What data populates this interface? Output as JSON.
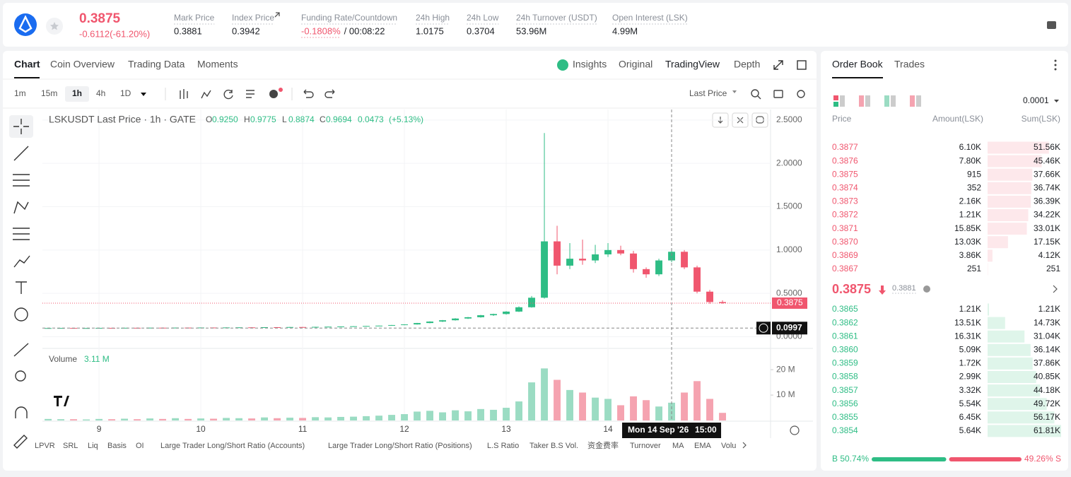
{
  "header": {
    "price": "0.3875",
    "change": "-0.6112(-61.20%)",
    "stats": [
      {
        "label": "Mark Price",
        "value": "0.3881"
      },
      {
        "label": "Index Price",
        "value": "0.3942"
      },
      {
        "label": "Funding Rate/Countdown",
        "value": "-0.1808%",
        "countdown": "/ 00:08:22"
      },
      {
        "label": "24h High",
        "value": "1.0175"
      },
      {
        "label": "24h Low",
        "value": "0.3704"
      },
      {
        "label": "24h Turnover (USDT)",
        "value": "53.96M"
      },
      {
        "label": "Open Interest (LSK)",
        "value": "4.99M"
      }
    ]
  },
  "tabs": [
    "Chart",
    "Coin Overview",
    "Trading Data",
    "Moments"
  ],
  "views": [
    "Insights",
    "Original",
    "TradingView",
    "Depth"
  ],
  "intervals": [
    "1m",
    "15m",
    "1h",
    "4h",
    "1D"
  ],
  "price_source": "Last Price",
  "chart_data": {
    "type": "candlestick",
    "title": "LSKUSDT Last Price · 1h · GATE",
    "legend": [
      {
        "key": "O",
        "value": "0.9250"
      },
      {
        "key": "H",
        "value": "0.9775"
      },
      {
        "key": "L",
        "value": "0.8874"
      },
      {
        "key": "C",
        "value": "0.9694"
      }
    ],
    "change": "0.0473",
    "change_pct": "(+5.13%)",
    "up_color": "#2ebd85",
    "down_color": "#f0566e",
    "x": [
      8.5,
      8.625,
      8.75,
      8.875,
      9.0,
      9.125,
      9.25,
      9.375,
      9.5,
      9.625,
      9.75,
      9.875,
      10.0,
      10.125,
      10.25,
      10.375,
      10.5,
      10.625,
      10.75,
      10.875,
      11.0,
      11.125,
      11.25,
      11.375,
      11.5,
      11.625,
      11.75,
      11.875,
      12.0,
      12.125,
      12.25,
      12.375,
      12.5,
      12.625,
      12.75,
      12.875,
      13.0,
      13.125,
      13.25,
      13.375,
      13.5,
      13.625,
      13.75,
      13.875,
      14.0,
      14.125,
      14.25,
      14.375,
      14.5,
      14.625,
      14.75,
      14.875,
      15.0,
      15.125
    ],
    "open": [
      0.099,
      0.1,
      0.101,
      0.099,
      0.1,
      0.102,
      0.101,
      0.103,
      0.102,
      0.104,
      0.103,
      0.105,
      0.104,
      0.106,
      0.105,
      0.107,
      0.108,
      0.107,
      0.11,
      0.109,
      0.112,
      0.111,
      0.114,
      0.116,
      0.118,
      0.121,
      0.124,
      0.128,
      0.135,
      0.142,
      0.158,
      0.175,
      0.19,
      0.21,
      0.225,
      0.248,
      0.262,
      0.29,
      0.34,
      0.45,
      1.1,
      0.82,
      0.9,
      0.88,
      0.95,
      1.0,
      0.96,
      0.78,
      0.72,
      0.88,
      0.98,
      0.8,
      0.52,
      0.4
    ],
    "high": [
      0.102,
      0.102,
      0.102,
      0.101,
      0.103,
      0.103,
      0.104,
      0.104,
      0.105,
      0.105,
      0.106,
      0.106,
      0.107,
      0.107,
      0.108,
      0.109,
      0.109,
      0.111,
      0.111,
      0.113,
      0.113,
      0.115,
      0.117,
      0.119,
      0.122,
      0.125,
      0.129,
      0.136,
      0.144,
      0.16,
      0.178,
      0.193,
      0.214,
      0.228,
      0.252,
      0.266,
      0.295,
      0.35,
      0.47,
      2.35,
      1.28,
      1.08,
      1.12,
      1.06,
      1.08,
      1.05,
      0.99,
      0.8,
      0.9,
      1.02,
      1.0,
      0.82,
      0.54,
      0.42
    ],
    "low": [
      0.098,
      0.099,
      0.098,
      0.098,
      0.099,
      0.1,
      0.1,
      0.101,
      0.101,
      0.102,
      0.102,
      0.103,
      0.103,
      0.104,
      0.104,
      0.106,
      0.106,
      0.106,
      0.108,
      0.108,
      0.11,
      0.11,
      0.113,
      0.115,
      0.117,
      0.12,
      0.123,
      0.127,
      0.133,
      0.14,
      0.155,
      0.17,
      0.186,
      0.205,
      0.22,
      0.24,
      0.255,
      0.285,
      0.335,
      0.44,
      0.72,
      0.78,
      0.83,
      0.85,
      0.92,
      0.94,
      0.74,
      0.68,
      0.7,
      0.86,
      0.78,
      0.5,
      0.38,
      0.38
    ],
    "close": [
      0.1,
      0.101,
      0.099,
      0.1,
      0.102,
      0.101,
      0.103,
      0.102,
      0.104,
      0.103,
      0.105,
      0.104,
      0.106,
      0.105,
      0.107,
      0.108,
      0.107,
      0.11,
      0.109,
      0.112,
      0.111,
      0.114,
      0.116,
      0.118,
      0.121,
      0.124,
      0.128,
      0.135,
      0.142,
      0.158,
      0.175,
      0.19,
      0.21,
      0.225,
      0.248,
      0.262,
      0.29,
      0.34,
      0.45,
      1.1,
      0.82,
      0.9,
      0.88,
      0.95,
      1.0,
      0.96,
      0.78,
      0.72,
      0.88,
      0.98,
      0.8,
      0.52,
      0.4,
      0.3875
    ],
    "xlim": [
      8.444,
      15.597
    ],
    "xticks": [
      9,
      10,
      11,
      12,
      13,
      14
    ],
    "ylim": [
      -0.11,
      2.58
    ],
    "yticks": [
      {
        "value": 0,
        "label": "0.0000"
      },
      {
        "value": 0.5,
        "label": "0.5000"
      },
      {
        "value": 1,
        "label": "1.0000"
      },
      {
        "value": 1.5,
        "label": "1.5000"
      },
      {
        "value": 2,
        "label": "2.0000"
      },
      {
        "value": 2.5,
        "label": "2.5000"
      }
    ],
    "grid": true,
    "last_price": {
      "value": 0.3875,
      "label": "0.3875"
    },
    "crosshair": {
      "x": 14.625,
      "price": {
        "value": 0.0997,
        "label": "0.0997"
      },
      "date_label": "Mon 14 Sep '26",
      "time_label": "15:00"
    },
    "volume": {
      "title": "Volume",
      "current": "3.11 M",
      "up_color": "#9bdcc3",
      "down_color": "#f5a3b0",
      "values": [
        0.6,
        0.5,
        0.5,
        0.4,
        0.6,
        0.5,
        0.7,
        0.5,
        0.8,
        0.6,
        0.9,
        0.6,
        0.8,
        0.7,
        1.0,
        0.9,
        0.8,
        1.2,
        0.9,
        1.1,
        1.0,
        1.3,
        1.2,
        1.4,
        1.5,
        1.7,
        1.9,
        2.2,
        2.5,
        3.5,
        3.8,
        3.2,
        4.0,
        3.6,
        4.5,
        4.2,
        5.0,
        7.5,
        15.0,
        20.5,
        16.0,
        12.0,
        11.0,
        9.0,
        8.5,
        6.0,
        9.5,
        8.0,
        5.5,
        7.0,
        11.0,
        15.5,
        8.5,
        3.0
      ],
      "ylim": [
        0,
        27
      ],
      "yticks": [
        {
          "value": 10,
          "label": "10 M"
        },
        {
          "value": 20,
          "label": "20 M"
        }
      ]
    }
  },
  "indicators": [
    "LPVR",
    "SRL",
    "Liq",
    "Basis",
    "OI",
    "Large Trader Long/Short Ratio (Accounts)",
    "Large Trader Long/Short Ratio (Positions)",
    "L.S Ratio",
    "Taker B.S Vol.",
    "资金费率",
    "Turnover",
    "MA",
    "EMA",
    "Volu"
  ],
  "order_book": {
    "tabs": [
      "Order Book",
      "Trades"
    ],
    "precision": "0.0001",
    "columns": [
      "Price",
      "Amount(LSK)",
      "Sum(LSK)"
    ],
    "asks": [
      [
        "0.3877",
        "6.10K",
        "51.56K"
      ],
      [
        "0.3876",
        "7.80K",
        "45.46K"
      ],
      [
        "0.3875",
        "915",
        "37.66K"
      ],
      [
        "0.3874",
        "352",
        "36.74K"
      ],
      [
        "0.3873",
        "2.16K",
        "36.39K"
      ],
      [
        "0.3872",
        "1.21K",
        "34.22K"
      ],
      [
        "0.3871",
        "15.85K",
        "33.01K"
      ],
      [
        "0.3870",
        "13.03K",
        "17.15K"
      ],
      [
        "0.3869",
        "3.86K",
        "4.12K"
      ],
      [
        "0.3867",
        "251",
        "251"
      ]
    ],
    "last": "0.3875",
    "mark": "0.3881",
    "bids": [
      [
        "0.3865",
        "1.21K",
        "1.21K"
      ],
      [
        "0.3862",
        "13.51K",
        "14.73K"
      ],
      [
        "0.3861",
        "16.31K",
        "31.04K"
      ],
      [
        "0.3860",
        "5.09K",
        "36.14K"
      ],
      [
        "0.3859",
        "1.72K",
        "37.86K"
      ],
      [
        "0.3858",
        "2.99K",
        "40.85K"
      ],
      [
        "0.3857",
        "3.32K",
        "44.18K"
      ],
      [
        "0.3856",
        "5.54K",
        "49.72K"
      ],
      [
        "0.3855",
        "6.45K",
        "56.17K"
      ],
      [
        "0.3854",
        "5.64K",
        "61.81K"
      ]
    ],
    "ratio": {
      "buy": {
        "value": 50.74,
        "label": "B 50.74%"
      },
      "sell": {
        "value": 49.26,
        "label": "49.26% S"
      }
    }
  }
}
